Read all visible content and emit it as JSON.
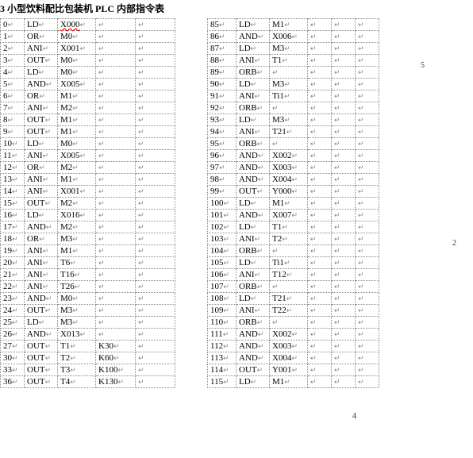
{
  "title_prefix": "3 小型饮料配比包装机 PLC 内部指令表",
  "title_red": "X000",
  "left_rows": [
    [
      "0",
      "LD",
      "X000",
      ""
    ],
    [
      "1",
      "OR",
      "M0",
      ""
    ],
    [
      "2",
      "ANI",
      "X001",
      ""
    ],
    [
      "3",
      "OUT",
      "M0",
      ""
    ],
    [
      "4",
      "LD",
      "M0",
      ""
    ],
    [
      "5",
      "AND",
      "X005",
      ""
    ],
    [
      "6",
      "OR",
      "M1",
      ""
    ],
    [
      "7",
      "ANI",
      "M2",
      ""
    ],
    [
      "8",
      "OUT",
      "M1",
      ""
    ],
    [
      "9",
      "OUT",
      "M1",
      ""
    ],
    [
      "10",
      "LD",
      "M0",
      ""
    ],
    [
      "11",
      "ANI",
      "X005",
      ""
    ],
    [
      "12",
      "OR",
      "M2",
      ""
    ],
    [
      "13",
      "ANI",
      "M1",
      ""
    ],
    [
      "14",
      "ANI",
      "X001",
      ""
    ],
    [
      "15",
      "OUT",
      "M2",
      ""
    ],
    [
      "16",
      "LD",
      "X016",
      ""
    ],
    [
      "17",
      "AND",
      "M2",
      ""
    ],
    [
      "18",
      "OR",
      "M3",
      ""
    ],
    [
      "19",
      "ANI",
      "M1",
      ""
    ],
    [
      "20",
      "ANI",
      "T6",
      ""
    ],
    [
      "21",
      "ANI",
      "T16",
      ""
    ],
    [
      "22",
      "ANI",
      "T26",
      ""
    ],
    [
      "23",
      "AND",
      "M0",
      ""
    ],
    [
      "24",
      "OUT",
      "M3",
      ""
    ],
    [
      "25",
      "LD",
      "M3",
      ""
    ],
    [
      "26",
      "AND",
      "X013",
      ""
    ],
    [
      "27",
      "OUT",
      "T1",
      "K30"
    ],
    [
      "30",
      "OUT",
      "T2",
      "K60"
    ],
    [
      "33",
      "OUT",
      "T3",
      "K100"
    ],
    [
      "36",
      "OUT",
      "T4",
      "K130"
    ]
  ],
  "right_rows": [
    [
      "85",
      "LD",
      "M1",
      ""
    ],
    [
      "86",
      "AND",
      "X006",
      ""
    ],
    [
      "87",
      "LD",
      "M3",
      ""
    ],
    [
      "88",
      "ANI",
      "T1",
      ""
    ],
    [
      "89",
      "ORB",
      "",
      ""
    ],
    [
      "90",
      "LD",
      "M3",
      ""
    ],
    [
      "91",
      "ANI",
      "Ti1",
      ""
    ],
    [
      "92",
      "ORB",
      "",
      ""
    ],
    [
      "93",
      "LD",
      "M3",
      ""
    ],
    [
      "94",
      "ANI",
      "T21",
      ""
    ],
    [
      "95",
      "ORB",
      "",
      ""
    ],
    [
      "96",
      "AND",
      "X002",
      ""
    ],
    [
      "97",
      "AND",
      "X003",
      ""
    ],
    [
      "98",
      "AND",
      "X004",
      ""
    ],
    [
      "99",
      "OUT",
      "Y000",
      ""
    ],
    [
      "100",
      "LD",
      "M1",
      ""
    ],
    [
      "101",
      "AND",
      "X007",
      ""
    ],
    [
      "102",
      "LD",
      "T1",
      ""
    ],
    [
      "103",
      "ANI",
      "T2",
      ""
    ],
    [
      "104",
      "ORB",
      "",
      ""
    ],
    [
      "105",
      "LD",
      "Ti1",
      ""
    ],
    [
      "106",
      "ANI",
      "T12",
      ""
    ],
    [
      "107",
      "ORB",
      "",
      ""
    ],
    [
      "108",
      "LD",
      "T21",
      ""
    ],
    [
      "109",
      "ANI",
      "T22",
      ""
    ],
    [
      "110",
      "ORB",
      "",
      ""
    ],
    [
      "111",
      "AND",
      "X002",
      ""
    ],
    [
      "112",
      "AND",
      "X003",
      ""
    ],
    [
      "113",
      "AND",
      "X004",
      ""
    ],
    [
      "114",
      "OUT",
      "Y001",
      ""
    ],
    [
      "115",
      "LD",
      "M1",
      ""
    ]
  ],
  "annotations": {
    "a1": "5",
    "a2": "2",
    "a3": "4"
  }
}
